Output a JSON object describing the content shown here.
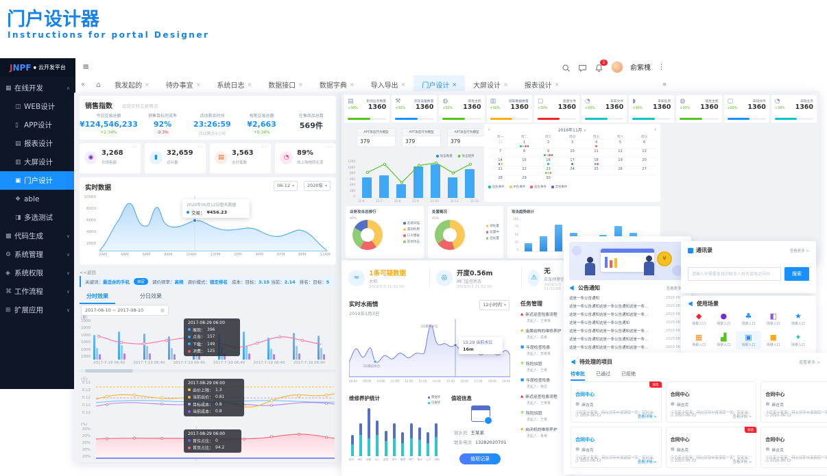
{
  "page": {
    "title": "门户设计器",
    "subtitle": "Instructions for portal Designer"
  },
  "shell": {
    "logo": {
      "brand_first": "J",
      "brand_rest": "NPF",
      "dot": "●",
      "name": "云开发平台"
    },
    "menu": [
      {
        "label": "在线开发",
        "icon": "▦",
        "chev": "∧"
      },
      {
        "label": "WEB设计",
        "icon": "◫",
        "indent": true
      },
      {
        "label": "APP设计",
        "icon": "▯",
        "indent": true
      },
      {
        "label": "报表设计",
        "icon": "▤",
        "indent": true
      },
      {
        "label": "大屏设计",
        "icon": "▥",
        "indent": true
      },
      {
        "label": "门户设计",
        "icon": "▣",
        "indent": true,
        "active": true
      },
      {
        "label": "able",
        "icon": "❖",
        "indent": true
      },
      {
        "label": "多选测试",
        "icon": "◨",
        "indent": true
      },
      {
        "label": "代码生成",
        "icon": "▩",
        "chev": "∨"
      },
      {
        "label": "系统管理",
        "icon": "⚙",
        "chev": "∨"
      },
      {
        "label": "系统权限",
        "icon": "◈",
        "chev": "∨"
      },
      {
        "label": "工作流程",
        "icon": "⌘",
        "chev": "∨"
      },
      {
        "label": "扩展应用",
        "icon": "⊞",
        "chev": "∨"
      }
    ],
    "nav": {
      "burger": "≡",
      "back": "«",
      "fwd": "»",
      "home": "⌂",
      "kebab": "⋮"
    },
    "user": {
      "name": "俞紫槐",
      "badge": "2"
    },
    "close_glyph": "×",
    "tabs": [
      {
        "label": "我发起的"
      },
      {
        "label": "待办事宜"
      },
      {
        "label": "系统日志"
      },
      {
        "label": "数据接口"
      },
      {
        "label": "数据字典"
      },
      {
        "label": "导入导出"
      },
      {
        "label": "门户设计",
        "active": true
      },
      {
        "label": "大屏设计"
      },
      {
        "label": "报表设计"
      }
    ]
  },
  "sales": {
    "panel_title": "销售指数",
    "panel_sub": "运营实时交易情况",
    "stats": [
      {
        "label": "今日交易总额",
        "value": "¥124,546,233",
        "delta": "+2.34%",
        "vc": "#1890ff",
        "dc": "#52c41a"
      },
      {
        "label": "销售目标完成率",
        "value": "92%",
        "delta": "-0.3%",
        "vc": "#1890ff",
        "dc": "#f5222d"
      },
      {
        "label": "活动剩余时间",
        "value": "23:26:59",
        "delta": "活动剩余4小时",
        "vc": "#1890ff",
        "dc": "#b9bec7"
      },
      {
        "label": "每笔交易总额",
        "value": "¥2,663",
        "delta": "+0.34%",
        "vc": "#1890ff",
        "dc": "#52c41a"
      },
      {
        "label": "在售商品总数",
        "value": "569件",
        "delta": "",
        "vc": "#333a45",
        "dc": "#999999"
      }
    ],
    "kpi_more": "⋯",
    "kpis": [
      {
        "value": "3,268",
        "label": "总销售额",
        "icon": "◉",
        "c": "#722ed1",
        "bg": "#f4eefe"
      },
      {
        "value": "32,659",
        "label": "访问量",
        "icon": "▮",
        "c": "#1890ff",
        "bg": "#e8f4ff"
      },
      {
        "value": "3,563",
        "label": "支付笔数",
        "icon": "▤",
        "c": "#fa541c",
        "bg": "#ffeee6"
      },
      {
        "value": "89%",
        "label": "线上购物转化率",
        "icon": "◔",
        "c": "#f5317f",
        "bg": "#ffeaf2"
      }
    ],
    "realtime": {
      "title": "实时数据",
      "sel_month": "06-12",
      "sel_year": "2020年",
      "caret": "▾",
      "yticks": [
        "10000",
        "8000",
        "6000",
        "4000",
        "2000"
      ],
      "xticks": [
        "2AM",
        "4AM",
        "6AM",
        "8AM",
        "10AM",
        "12PM",
        "2PM",
        "4PM",
        "6PM",
        "8PM",
        "12AM"
      ],
      "tip_title": "2020年06月12日整天数据",
      "tip_label": "交易：",
      "tip_value": "¥456.23"
    },
    "back": "<<返回",
    "kw": {
      "l1": "关键词：",
      "v1": "最适合的手机",
      "badge": "自定",
      "l2": "调价频率：",
      "v2": "高频",
      "l3": "调价模式：",
      "v3": "锁定排名",
      "l4": "成本：目标：",
      "v4": "3.15",
      "l5": "当前：",
      "v5": "2.14",
      "l6": "排名：目标：",
      "v6": "5"
    },
    "tabs": [
      {
        "label": "分时效果",
        "active": true
      },
      {
        "label": "分日效果"
      }
    ],
    "daterange": "2017-08-10 ~ 2017-08-10",
    "date_icon": "▦",
    "chart1": {
      "yunit": "(量)",
      "yticks": [
        "1000",
        "1000",
        "1000",
        "1000",
        "1000",
        "1000"
      ],
      "xticks": [
        "2017-7-19 06:40",
        "2017-7-19 06:40",
        "2017-7-19 06:40",
        "2017-7-19 06:40",
        "2017-7-19 06:40",
        "2017-7-19 06:40"
      ],
      "groups": [
        [
          62,
          30,
          14
        ],
        [
          70,
          36,
          16
        ],
        [
          66,
          34,
          15
        ],
        [
          58,
          30,
          14
        ],
        [
          72,
          38,
          16
        ],
        [
          64,
          32,
          15
        ],
        [
          70,
          35,
          16
        ],
        [
          55,
          28,
          13
        ],
        [
          68,
          34,
          15
        ],
        [
          60,
          30,
          14
        ]
      ],
      "tip": {
        "time": "2017-08-29 06:00",
        "rows": [
          {
            "label": "展现：",
            "value": "396",
            "c": "#40a9ff"
          },
          {
            "label": "点击：",
            "value": "157",
            "c": "#40a9ff"
          },
          {
            "label": "下载：",
            "value": "149",
            "c": "#40a9ff"
          },
          {
            "label": "消费：",
            "value": "125",
            "c": "#ff4d6a"
          }
        ]
      }
    },
    "chart2": {
      "yunit": "(元)",
      "yticks": [
        "0.12",
        "0.12",
        "0.12",
        "0.12",
        "0.12"
      ],
      "tip": {
        "time": "2017-08-29 06:00",
        "rows": [
          {
            "label": "出价上限：",
            "value": "1.3",
            "c": "#fbc531"
          },
          {
            "label": "当前出价：",
            "value": "0.81",
            "c": "#f6b93b"
          },
          {
            "label": "目标成本：",
            "value": "0.8",
            "c": "#c49df5"
          },
          {
            "label": "当前成本：",
            "value": "0.8",
            "c": "#9b59f5"
          }
        ]
      }
    },
    "chart3": {
      "yunit": "(%)",
      "yticks": [
        "20%",
        "20%",
        "20%",
        "20%",
        "20%"
      ],
      "tip": {
        "time": "2017-08-29 06:00",
        "rows": [
          {
            "label": "首位占比：",
            "value": "0",
            "c": "#5a6af0"
          },
          {
            "label": "首页占比：",
            "value": "94.2",
            "c": "#f56a79"
          }
        ]
      }
    }
  },
  "security": {
    "stats": [
      {
        "label": "影响业务数量",
        "value": "1360",
        "delta": "+30%",
        "icon": "▤",
        "c": "#52c41a"
      },
      {
        "label": "涉及设备数量",
        "value": "1360",
        "delta": "+30%",
        "icon": "⚒",
        "c": "#1890ff"
      },
      {
        "label": "高危主机",
        "value": "1360",
        "delta": "+30%",
        "icon": "◍",
        "c": "#52c41a"
      },
      {
        "label": "窃取数据数量",
        "value": "1360",
        "delta": "+30%",
        "icon": "▥",
        "c": "#faad14"
      },
      {
        "label": "恶意文件",
        "value": "1360",
        "delta": "+30%",
        "icon": "▢",
        "c": "#f5222d"
      },
      {
        "label": "未知文件",
        "value": "1360",
        "delta": "+30%",
        "icon": "◔",
        "c": "#13c2c2"
      },
      {
        "label": "未知业务",
        "value": "1360",
        "delta": "+30%",
        "icon": "◗",
        "c": "#13c2c2"
      },
      {
        "label": "高危主机",
        "value": "1360",
        "delta": "+30%",
        "icon": "◍",
        "c": "#52c41a"
      },
      {
        "label": "未知文件",
        "value": "1360",
        "delta": "+30%",
        "icon": "▢",
        "c": "#1890ff"
      },
      {
        "label": "未知业务",
        "value": "1360",
        "delta": "+30%",
        "icon": "◔",
        "c": "#13c2c2"
      }
    ],
    "apt": [
      {
        "title": "APT攻击行为模型",
        "value": "379"
      },
      {
        "title": "APT攻击行为模型",
        "value": "379"
      },
      {
        "title": "APT攻击行为模型",
        "value": "379"
      }
    ],
    "legend": [
      {
        "label": "攻击数量",
        "c": "#1890ff"
      },
      {
        "label": "攻击趋势",
        "c": "#52c41a"
      }
    ],
    "bars": {
      "yticks": [
        "1200",
        "1000",
        "800",
        "600",
        "400",
        "200",
        "0"
      ],
      "x": [
        "11-6",
        "11-7",
        "11-8",
        "11-9",
        "11-10",
        "11-11",
        "11-12"
      ],
      "values": [
        650,
        700,
        420,
        980,
        1050,
        640,
        900
      ],
      "max": 1200
    },
    "calendar": {
      "prev": "‹",
      "next": "›",
      "title": "2016年11月",
      "caret": "∨",
      "weekdays": [
        "周一",
        "周二",
        "周三",
        "周四",
        "周五",
        "周六",
        "周日"
      ],
      "days": [
        {
          "n": "31",
          "m": 1
        },
        {
          "n": "1",
          "d": [
            "#13c2c2",
            "#fac858",
            "#ee6666",
            "#5470c6"
          ]
        },
        {
          "n": "2"
        },
        {
          "n": "3"
        },
        {
          "n": "4",
          "d": [
            "#ee6666"
          ]
        },
        {
          "n": "5"
        },
        {
          "n": "6"
        },
        {
          "n": "7"
        },
        {
          "n": "8"
        },
        {
          "n": "9",
          "d": [
            "#13c2c2",
            "#fac858",
            "#ee6666",
            "#5470c6"
          ]
        },
        {
          "n": "10"
        },
        {
          "n": "11"
        },
        {
          "n": "12"
        },
        {
          "n": "13"
        },
        {
          "n": "14",
          "d": [
            "#5470c6",
            "#fac858"
          ]
        },
        {
          "n": "15"
        },
        {
          "n": "16",
          "d": [
            "#13c2c2"
          ]
        },
        {
          "n": "17",
          "d": [
            "#5470c6"
          ]
        },
        {
          "n": "18",
          "d": [
            "#13c2c2",
            "#ee6666"
          ]
        },
        {
          "n": "19"
        },
        {
          "n": "20"
        },
        {
          "n": "21"
        },
        {
          "n": "22"
        },
        {
          "n": "23",
          "d": [
            "#13c2c2",
            "#fac858",
            "#ee6666"
          ]
        },
        {
          "n": "24"
        },
        {
          "n": "25"
        },
        {
          "n": "26"
        },
        {
          "n": "27"
        },
        {
          "n": "28"
        },
        {
          "n": "29"
        },
        {
          "n": "30"
        },
        {
          "n": ""
        },
        {
          "n": ""
        },
        {
          "n": ""
        },
        {
          "n": ""
        }
      ],
      "legend": [
        {
          "label": "低危事件",
          "c": "#13c2c2"
        },
        {
          "label": "中危事件",
          "c": "#fac858"
        },
        {
          "label": "高危事件",
          "c": "#ee6666"
        },
        {
          "label": "其他事件",
          "c": "#5470c6"
        }
      ]
    },
    "donut1": {
      "title": "业务攻击总排行",
      "pct": "40%",
      "slices": [
        {
          "v": 40,
          "c": "#fac858"
        },
        {
          "v": 18,
          "c": "#ee6666"
        },
        {
          "v": 25,
          "c": "#91cc75"
        },
        {
          "v": 17,
          "c": "#5470c6"
        }
      ],
      "legend": [
        {
          "label": "恶意扫描",
          "c": "#5470c6"
        },
        {
          "label": "漏洞利用",
          "c": "#fac858"
        },
        {
          "label": "口令爆破",
          "c": "#ee6666"
        },
        {
          "label": "其他攻击",
          "c": "#91cc75"
        }
      ]
    },
    "donut2": {
      "title": "处置概况",
      "pct": "45%",
      "slices": [
        {
          "v": 45,
          "c": "#fac858"
        },
        {
          "v": 20,
          "c": "#ee6666"
        },
        {
          "v": 35,
          "c": "#91cc75"
        }
      ],
      "legend": [
        {
          "label": "待处置",
          "c": "#fac858"
        },
        {
          "label": "处置中",
          "c": "#ee6666"
        },
        {
          "label": "已处置",
          "c": "#91cc75"
        }
      ]
    },
    "bars2": {
      "title": "攻击趋势统计",
      "yticks": [
        "100",
        "75",
        "50",
        "25",
        "0"
      ],
      "values": [
        25,
        45,
        78,
        55,
        35,
        48,
        75,
        55,
        35
      ],
      "max": 100
    }
  },
  "water": {
    "stats": [
      {
        "value": "1条可疑数据",
        "sub": "大坝",
        "time": "2019/1/3 11:32:00",
        "vc": "#faad14",
        "icon": "≈"
      },
      {
        "value": "开度0.56m",
        "sub": "闸门监控状态",
        "time": "2019/1/3 11:32:00",
        "vc": "#333a45",
        "icon": "◎"
      },
      {
        "value": "无",
        "sub": "应急预警信息",
        "time": "2019/1/3 11:32:00",
        "vc": "#333a45",
        "icon": "⚠"
      }
    ],
    "rain": {
      "title": "实时水雨情",
      "date": "2019年1月3日",
      "sel": "12小时内",
      "caret": "▾",
      "xticks": [
        "08:00",
        "09:00",
        "10:00",
        "11:00",
        "12:00",
        "13:00",
        "14:00",
        "15:00",
        "16:00",
        "17:00",
        "18:00",
        "19:00"
      ],
      "hi": "3日最高水位",
      "lo": "3日最低水位",
      "tip_t": "15:29 当前水位",
      "tip_v": "16m"
    },
    "maint": {
      "title": "维修养护统计",
      "legend": [
        {
          "label": "需维修",
          "c": "#5470c6"
        },
        {
          "label": "已维修",
          "c": "#2fc7c9"
        }
      ],
      "cats": [
        "排洪",
        "绿化",
        "设备",
        "水工",
        "金属",
        "电气",
        "管理",
        "阀门",
        "输水",
        "土方",
        "其他"
      ],
      "blue": [
        15,
        20,
        50,
        25,
        17,
        25,
        18,
        25,
        20,
        18,
        23
      ],
      "teal": [
        20,
        35,
        30,
        35,
        25,
        30,
        22,
        30,
        28,
        22,
        32
      ],
      "max": 80
    },
    "duty": {
      "title": "值班信息",
      "l1": "放水员",
      "v1": "王某某",
      "l2": "联系电话",
      "v2": "13282020701",
      "btn": "值班记录"
    },
    "tasks": {
      "title": "任务管理",
      "items": [
        {
          "name": "新近巡查险患流程",
          "by": "发起人：王某某",
          "icon": "▲",
          "c": "#f5222d"
        },
        {
          "name": "金属结构的维修养护",
          "by": "发起人：黑某",
          "icon": "◆",
          "c": "#faad14"
        },
        {
          "name": "年度检查险患",
          "by": "发起人：李某某",
          "icon": "■",
          "c": "#1890ff"
        },
        {
          "name": "除险加固",
          "by": "发起人：王某",
          "icon": "⚙",
          "c": "#52c41a"
        },
        {
          "name": "年度检查险患",
          "by": "发起人：格雷",
          "icon": "■",
          "c": "#1890ff"
        },
        {
          "name": "新近巡查险患流程",
          "by": "发起人：王某某",
          "icon": "▲",
          "c": "#f5222d"
        },
        {
          "name": "除险加固",
          "by": "发起人：王某",
          "icon": "⚙",
          "c": "#52c41a"
        },
        {
          "name": "启闭机的维修养护",
          "by": "发起人：鲁某",
          "icon": "◆",
          "c": "#faad14"
        }
      ]
    }
  },
  "notice": {
    "title": "公告通知",
    "more": "查看更多 >",
    "items": [
      {
        "text": "这是一条公告通知",
        "date": "2020-06-12"
      },
      {
        "text": "这是一条公告通知这是一条公告通知这是一条公告通知…",
        "date": "2020-06-12"
      },
      {
        "text": "这是一条公告通知这是一条公告通知这是一条公告通知…",
        "date": "2020-06-12"
      },
      {
        "text": "这是一条公告通知这是一条公告通知",
        "date": "2020-06-12"
      },
      {
        "text": "这是一条公告通知这是一条公告通知这是一条公告通知…",
        "date": "2020-06-12"
      },
      {
        "text": "这是一条公告通知这是一条公告通知这是一条…",
        "date": "2020-06-12"
      },
      {
        "text": "这是一条公告通知这是一条公告通知这是一条…",
        "date": "2020-06-12"
      }
    ]
  },
  "contacts": {
    "title": "通讯录",
    "more": "查看更多 >",
    "placeholder": "请输入你需要查找的联系人姓名或电话号码",
    "btn": "搜索"
  },
  "scenes": {
    "title": "使用场景",
    "entry": "场景入口",
    "items": [
      {
        "icon": "◆",
        "c": "#f5222d"
      },
      {
        "icon": "●",
        "c": "#722ed1"
      },
      {
        "icon": "♣",
        "c": "#1890ff"
      },
      {
        "icon": "◧",
        "c": "#9254de"
      },
      {
        "icon": "★",
        "c": "#1890ff"
      },
      {
        "icon": "▦",
        "c": "#fa8c16"
      },
      {
        "icon": "▟",
        "c": "#52c41a"
      },
      {
        "icon": "▣",
        "c": "#1890ff",
        "sel": true
      },
      {
        "icon": "■",
        "c": "#faad14"
      },
      {
        "icon": "✦",
        "c": "#13c2c2"
      }
    ]
  },
  "projects": {
    "title": "待处理的项目",
    "more": "查看更多 >",
    "person_icon": "☻",
    "clock_icon": "◷",
    "tabs": [
      {
        "label": "待审批",
        "active": true
      },
      {
        "label": "已通过"
      },
      {
        "label": "已拒绝"
      }
    ],
    "cards": [
      {
        "title": "合同中心",
        "badge": "加急",
        "person": "麻吉克",
        "text": "今日家中有事，特向领导申请请假一天，望批准。",
        "date": "2020-06-12",
        "link": "查看详情 >",
        "tb": true,
        "lb": true
      },
      {
        "title": "合同中心",
        "person": "麻吉克",
        "text": "今日家中有事，特向领导申请请假一天，望批准。",
        "date": "2020-06-12",
        "link": "查看详情 >"
      },
      {
        "title": "合同中心",
        "person": "麻吉克",
        "text": "今日家中有事，特向领导申请请假一天，望批准。",
        "date": "2020-06-12",
        "link": "查看详情 >"
      },
      {
        "title": "合同中心",
        "person": "麻吉克",
        "text": "今日家中有事，特向领导申请请假一天，望批准。",
        "date": "2020-06-12",
        "link": "查看详情 >",
        "tb": true,
        "lb": true
      },
      {
        "title": "合同中心",
        "badge": "加急",
        "person": "麻吉克",
        "text": "今日家中有事，特向领导申请请假一天，望批准。",
        "date": "2020-06-12",
        "link": "查看详情 >"
      },
      {
        "title": "合同中心",
        "badge": "加急",
        "person": "麻吉克",
        "text": "今日家中有事，特向领导申请请假一天，望批准。",
        "date": "2020-06-12",
        "link": "查看详情 >"
      }
    ]
  }
}
